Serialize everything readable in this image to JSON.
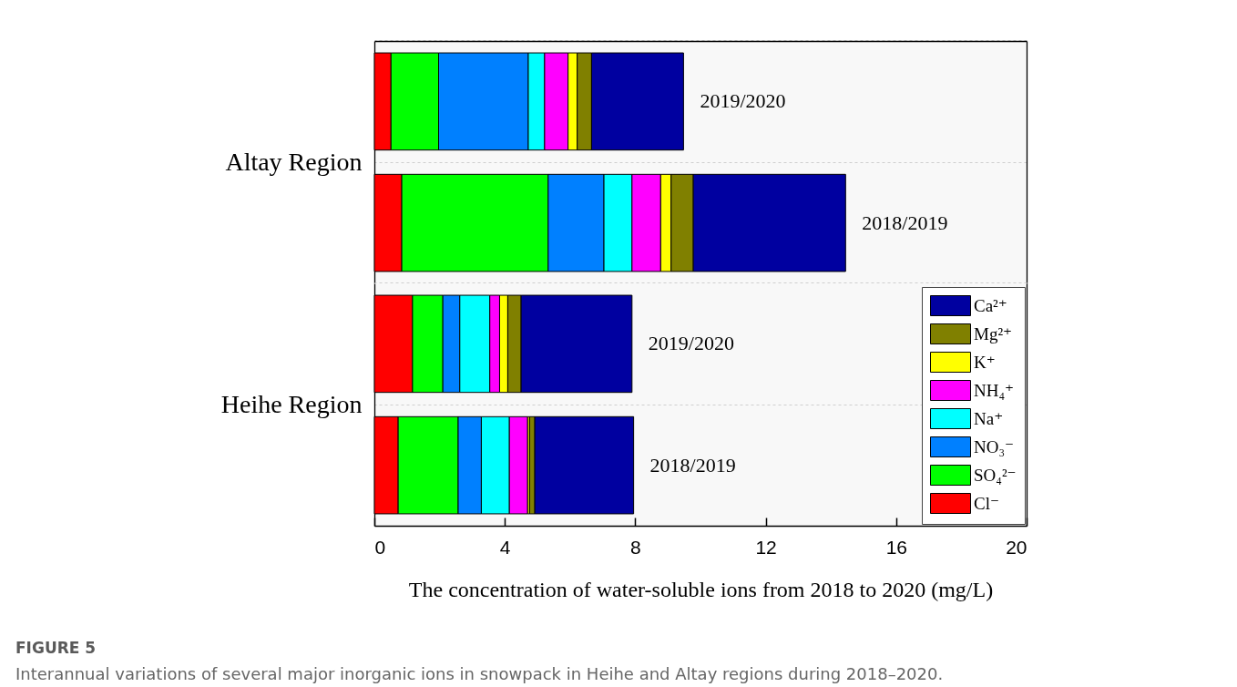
{
  "chart_data": [
    {
      "type": "bar",
      "orientation": "horizontal",
      "stacked": true,
      "ylabel": "Altay Region",
      "categories": [
        "2019/2020",
        "2018/2019"
      ],
      "series": [
        {
          "color": "#ff0000",
          "values": [
            0.51,
            0.84
          ]
        },
        {
          "color": "#00ff00",
          "values": [
            1.46,
            4.49
          ]
        },
        {
          "color": "#0080ff",
          "values": [
            2.75,
            1.71
          ]
        },
        {
          "color": "#00ffff",
          "values": [
            0.5,
            0.86
          ]
        },
        {
          "color": "#ff00ff",
          "values": [
            0.72,
            0.88
          ]
        },
        {
          "color": "#ffff00",
          "values": [
            0.28,
            0.32
          ]
        },
        {
          "color": "#808000",
          "values": [
            0.44,
            0.68
          ]
        },
        {
          "color": "#0000a0",
          "values": [
            2.82,
            4.67
          ]
        }
      ],
      "xlim": [
        0,
        20
      ],
      "tick_labels": "y",
      "grid": "y"
    },
    {
      "type": "bar",
      "orientation": "horizontal",
      "stacked": true,
      "ylabel": "Heihe Region",
      "xlabel": "The concentration of water-soluble ions from 2018 to 2020 (mg/L)",
      "categories": [
        "2019/2020",
        "2018/2019"
      ],
      "series": [
        {
          "name": "Cl⁻",
          "color": "#ff0000",
          "values": [
            1.17,
            0.73
          ]
        },
        {
          "name": "SO₄²⁻",
          "color": "#00ff00",
          "values": [
            0.93,
            1.84
          ]
        },
        {
          "name": "NO₃⁻",
          "color": "#0080ff",
          "values": [
            0.52,
            0.71
          ]
        },
        {
          "name": "Na⁺",
          "color": "#00ffff",
          "values": [
            0.92,
            0.86
          ]
        },
        {
          "name": "NH₄⁺",
          "color": "#ff00ff",
          "values": [
            0.3,
            0.56
          ]
        },
        {
          "name": "K⁺",
          "color": "#ffff00",
          "values": [
            0.25,
            0.06
          ]
        },
        {
          "name": "Mg²⁺",
          "color": "#808000",
          "values": [
            0.41,
            0.16
          ]
        },
        {
          "name": "Ca²⁺",
          "color": "#0000a0",
          "values": [
            3.4,
            3.03
          ]
        }
      ],
      "xlim": [
        0,
        20
      ],
      "xticks": [
        0,
        4,
        8,
        12,
        16,
        20
      ],
      "grid": "y",
      "legend": "right",
      "annotations": [
        "FIGURE 5",
        "Interannual variations of several major inorganic ions in snowpack in Heihe and Altay regions during 2018–2020."
      ]
    }
  ]
}
